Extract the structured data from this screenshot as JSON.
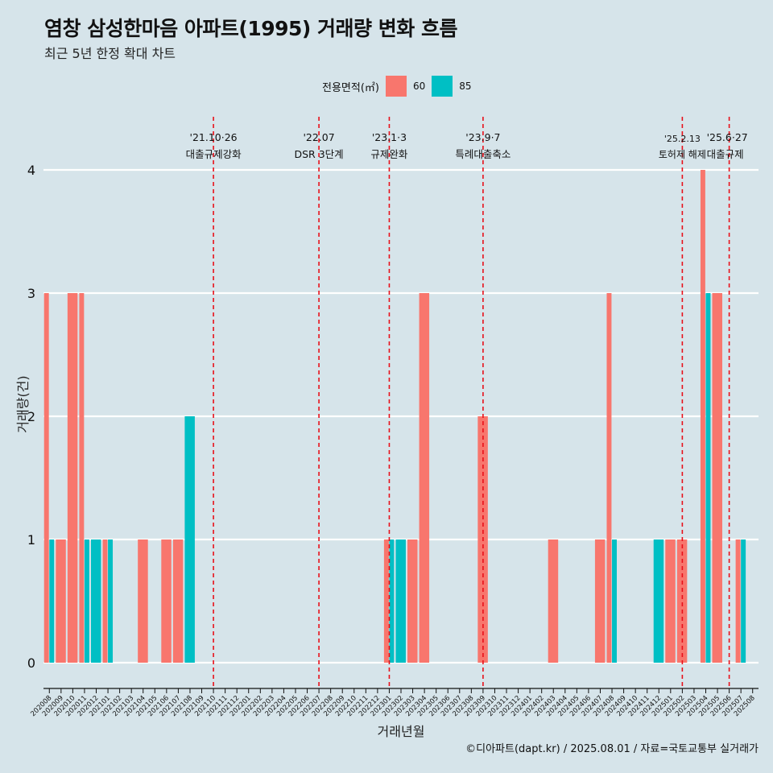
{
  "title": "염창 삼성한마음 아파트(1995) 거래량 변화 흐름",
  "subtitle": "최근 5년 한정 확대 차트",
  "caption": "©디아파트(dapt.kr) / 2025.08.01 / 자료=국토교통부 실거래가",
  "legend": {
    "title": "전용면적(㎡)",
    "items": [
      {
        "label": "60",
        "color": "#f8766d"
      },
      {
        "label": "85",
        "color": "#00bfc4"
      }
    ]
  },
  "chart_data": {
    "type": "bar",
    "xlabel": "거래년월",
    "ylabel": "거래량(건)",
    "ylim": [
      0,
      4
    ],
    "yticks": [
      0,
      1,
      2,
      3,
      4
    ],
    "grid": true,
    "legend_position": "top",
    "categories": [
      "202008",
      "202009",
      "202010",
      "202011",
      "202012",
      "202101",
      "202102",
      "202103",
      "202104",
      "202105",
      "202106",
      "202107",
      "202108",
      "202109",
      "202110",
      "202111",
      "202112",
      "202201",
      "202202",
      "202203",
      "202204",
      "202205",
      "202206",
      "202207",
      "202208",
      "202209",
      "202210",
      "202211",
      "202212",
      "202301",
      "202302",
      "202303",
      "202304",
      "202305",
      "202306",
      "202307",
      "202308",
      "202309",
      "202310",
      "202311",
      "202312",
      "202401",
      "202402",
      "202403",
      "202404",
      "202405",
      "202406",
      "202407",
      "202408",
      "202409",
      "202410",
      "202411",
      "202412",
      "202501",
      "202502",
      "202503",
      "202504",
      "202505",
      "202506",
      "202507",
      "202508"
    ],
    "series": [
      {
        "name": "60",
        "color": "#f8766d",
        "values": [
          3,
          1,
          3,
          3,
          0,
          1,
          0,
          0,
          1,
          0,
          1,
          1,
          0,
          0,
          0,
          0,
          0,
          0,
          0,
          0,
          0,
          0,
          0,
          0,
          0,
          0,
          0,
          0,
          0,
          1,
          0,
          1,
          3,
          0,
          0,
          0,
          0,
          2,
          0,
          0,
          0,
          0,
          0,
          1,
          0,
          0,
          0,
          1,
          3,
          0,
          0,
          0,
          0,
          1,
          1,
          0,
          4,
          3,
          0,
          1,
          0
        ]
      },
      {
        "name": "85",
        "color": "#00bfc4",
        "values": [
          1,
          0,
          0,
          1,
          1,
          1,
          0,
          0,
          0,
          0,
          0,
          0,
          2,
          0,
          0,
          0,
          0,
          0,
          0,
          0,
          0,
          0,
          0,
          0,
          0,
          0,
          0,
          0,
          0,
          1,
          1,
          0,
          0,
          0,
          0,
          0,
          0,
          0,
          0,
          0,
          0,
          0,
          0,
          0,
          0,
          0,
          0,
          0,
          1,
          0,
          0,
          0,
          1,
          0,
          0,
          0,
          3,
          0,
          0,
          1,
          0
        ]
      }
    ],
    "annotations": [
      {
        "month": "202110",
        "date": "'21.10·26",
        "label": "대출규제강화"
      },
      {
        "month": "202207",
        "date": "'22.07",
        "label": "DSR 3단계"
      },
      {
        "month": "202301",
        "date": "'23.1·3",
        "label": "규제완화"
      },
      {
        "month": "202309",
        "date": "'23.9·7",
        "label": "특례대출축소"
      },
      {
        "month": "202502",
        "date": "'25.2.13",
        "label": "토허제 해제"
      },
      {
        "month": "202506",
        "date": "'25.6·27",
        "label": "대출규제"
      }
    ]
  }
}
